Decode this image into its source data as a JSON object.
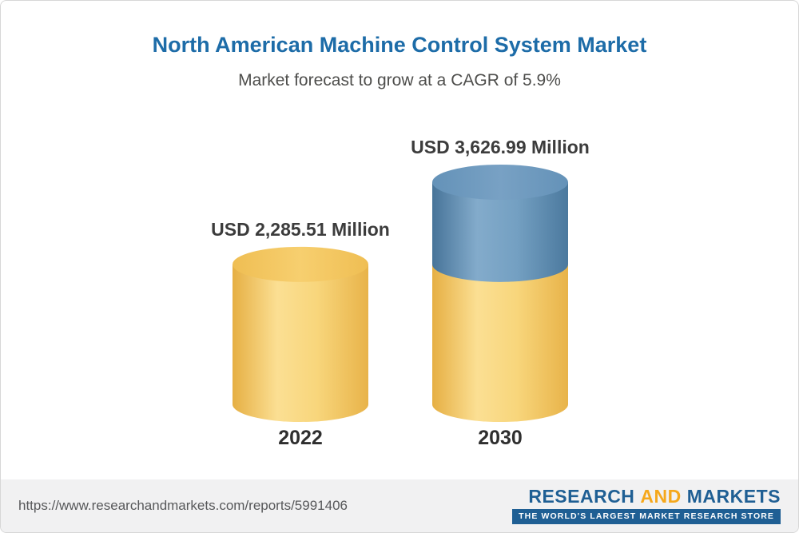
{
  "header": {
    "title": "North American Machine Control System Market",
    "subtitle": "Market forecast to grow at a CAGR of 5.9%"
  },
  "chart_data": {
    "type": "bar",
    "variant": "3d-cylinder",
    "title": "North American Machine Control System Market",
    "subtitle": "Market forecast to grow at a CAGR of 5.9%",
    "cagr": "5.9%",
    "unit": "USD Million",
    "categories": [
      "2022",
      "2030"
    ],
    "values": [
      2285.51,
      3626.99
    ],
    "value_labels": [
      "USD 2,285.51 Million",
      "USD 3,626.99 Million"
    ],
    "ylim": [
      0,
      3626.99
    ],
    "grid": false,
    "legend": false,
    "bars": [
      {
        "category": "2022",
        "label": "USD 2,285.51 Million",
        "segments": [
          {
            "value": 2285.51,
            "color_key": "base"
          }
        ]
      },
      {
        "category": "2030",
        "label": "USD 3,626.99 Million",
        "segments": [
          {
            "value": 2285.51,
            "color_key": "base"
          },
          {
            "value": 1341.48,
            "color_key": "growth"
          }
        ]
      }
    ],
    "colors": {
      "base": "#F3C660",
      "base_edge": "#E8B349",
      "base_highlight": "#FBDF93",
      "growth": "#6C99BE",
      "growth_edge": "#4B799E",
      "growth_highlight": "#83ABCB",
      "title_blue": "#1D6CA8",
      "text_dark": "#3C3C3C"
    }
  },
  "footer": {
    "url": "https://www.researchandmarkets.com/reports/5991406",
    "logo": {
      "research": "RESEARCH",
      "and": "AND",
      "markets": "MARKETS",
      "tagline": "THE WORLD'S LARGEST MARKET RESEARCH STORE"
    }
  }
}
